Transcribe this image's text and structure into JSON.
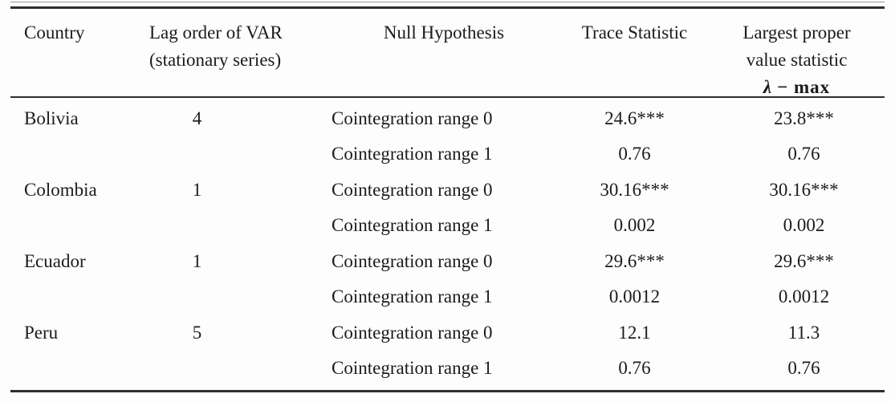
{
  "table": {
    "header": {
      "country": "Country",
      "lag_line1": "Lag order of VAR",
      "lag_line2": "(stationary series)",
      "null_hypothesis": "Null Hypothesis",
      "trace_statistic": "Trace Statistic",
      "largest_line1": "Largest proper",
      "largest_line2": "value statistic",
      "lambda_symbol": "λ",
      "lambda_rest": "− max"
    },
    "rows": [
      {
        "country": "Bolivia",
        "lag": "4",
        "null_hypothesis": "Cointegration range 0",
        "trace": "24.6***",
        "lambda_max": "23.8***"
      },
      {
        "country": "",
        "lag": "",
        "null_hypothesis": "Cointegration range 1",
        "trace": "0.76",
        "lambda_max": "0.76"
      },
      {
        "country": "Colombia",
        "lag": "1",
        "null_hypothesis": "Cointegration range 0",
        "trace": "30.16***",
        "lambda_max": "30.16***"
      },
      {
        "country": "",
        "lag": "",
        "null_hypothesis": "Cointegration range 1",
        "trace": "0.002",
        "lambda_max": "0.002"
      },
      {
        "country": "Ecuador",
        "lag": "1",
        "null_hypothesis": "Cointegration range 0",
        "trace": "29.6***",
        "lambda_max": "29.6***"
      },
      {
        "country": "",
        "lag": "",
        "null_hypothesis": "Cointegration range 1",
        "trace": "0.0012",
        "lambda_max": "0.0012"
      },
      {
        "country": "Peru",
        "lag": "5",
        "null_hypothesis": "Cointegration range 0",
        "trace": "12.1",
        "lambda_max": "11.3"
      },
      {
        "country": "",
        "lag": "",
        "null_hypothesis": "Cointegration range 1",
        "trace": "0.76",
        "lambda_max": "0.76"
      }
    ],
    "colors": {
      "rule": "#2e2e2e",
      "text": "#1b1b1b",
      "background": "#fdfdfd"
    }
  }
}
